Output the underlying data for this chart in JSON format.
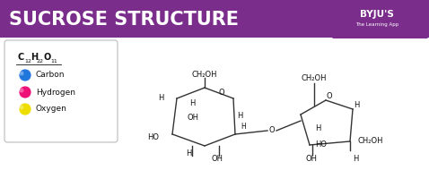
{
  "title": "SUCROSE STRUCTURE",
  "title_bg": "#7B2D8B",
  "title_fg": "#FFFFFF",
  "bg": "#FFFFFF",
  "line_color": "#333333",
  "text_color": "#111111",
  "legend_border": "#BBBBBB",
  "legend": [
    {
      "label": "Carbon",
      "color": "#2277DD"
    },
    {
      "label": "Hydrogen",
      "color": "#EE1177"
    },
    {
      "label": "Oxygen",
      "color": "#EEDD00"
    }
  ],
  "byju_purple": "#7B2D8B"
}
